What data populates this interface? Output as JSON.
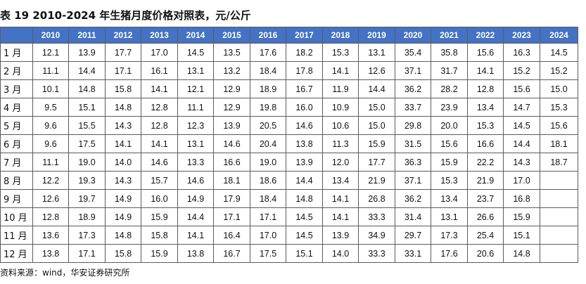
{
  "title": "表 19 2010-2024 年生猪月度价格对照表，元/公斤",
  "table": {
    "years": [
      "2010",
      "2011",
      "2012",
      "2013",
      "2014",
      "2015",
      "2016",
      "2017",
      "2018",
      "2019",
      "2020",
      "2021",
      "2022",
      "2023",
      "2024"
    ],
    "rows": [
      {
        "month": "1 月",
        "values": [
          "12.1",
          "13.9",
          "17.7",
          "17.0",
          "14.5",
          "13.5",
          "17.6",
          "18.2",
          "15.3",
          "13.1",
          "35.4",
          "35.8",
          "15.6",
          "16.3",
          "14.5"
        ]
      },
      {
        "month": "2 月",
        "values": [
          "11.1",
          "14.4",
          "17.1",
          "16.1",
          "13.1",
          "13.2",
          "18.4",
          "17.8",
          "14.1",
          "12.6",
          "37.1",
          "31.7",
          "14.1",
          "15.2",
          "15.2"
        ]
      },
      {
        "month": "3 月",
        "values": [
          "10.1",
          "14.8",
          "15.8",
          "14.1",
          "12.1",
          "12.9",
          "18.9",
          "16.7",
          "11.9",
          "14.4",
          "36.2",
          "28.2",
          "12.8",
          "15.6",
          "15.0"
        ]
      },
      {
        "month": "4 月",
        "values": [
          "9.5",
          "15.1",
          "14.8",
          "12.8",
          "11.1",
          "12.9",
          "19.8",
          "16.0",
          "10.9",
          "15.0",
          "33.7",
          "23.9",
          "13.4",
          "14.7",
          "15.3"
        ]
      },
      {
        "month": "5 月",
        "values": [
          "9.6",
          "15.5",
          "14.3",
          "12.8",
          "12.3",
          "13.9",
          "20.5",
          "14.6",
          "10.6",
          "15.0",
          "29.8",
          "20.0",
          "15.3",
          "14.5",
          "15.6"
        ]
      },
      {
        "month": "6 月",
        "values": [
          "9.6",
          "17.5",
          "14.1",
          "14.1",
          "13.1",
          "14.6",
          "20.4",
          "13.8",
          "11.3",
          "15.9",
          "31.5",
          "15.6",
          "16.6",
          "14.4",
          "18.1"
        ]
      },
      {
        "month": "7 月",
        "values": [
          "11.1",
          "19.0",
          "14.0",
          "14.6",
          "13.3",
          "16.6",
          "19.0",
          "13.9",
          "12.0",
          "17.7",
          "36.3",
          "15.9",
          "22.2",
          "14.3",
          "18.7"
        ]
      },
      {
        "month": "8 月",
        "values": [
          "12.2",
          "19.3",
          "14.3",
          "15.7",
          "14.6",
          "18.1",
          "18.6",
          "14.4",
          "13.4",
          "21.9",
          "37.1",
          "15.3",
          "21.9",
          "17.0",
          ""
        ]
      },
      {
        "month": "9 月",
        "values": [
          "12.6",
          "19.7",
          "14.9",
          "16.0",
          "14.9",
          "17.9",
          "18.4",
          "14.8",
          "14.1",
          "26.8",
          "36.2",
          "13.4",
          "23.7",
          "16.8",
          ""
        ]
      },
      {
        "month": "10 月",
        "values": [
          "12.8",
          "18.9",
          "14.9",
          "15.9",
          "14.4",
          "17.1",
          "17.1",
          "14.5",
          "14.1",
          "33.3",
          "31.4",
          "13.1",
          "26.6",
          "15.9",
          ""
        ]
      },
      {
        "month": "11 月",
        "values": [
          "13.6",
          "17.3",
          "14.8",
          "15.8",
          "14.1",
          "16.4",
          "17.0",
          "14.5",
          "13.9",
          "34.9",
          "29.7",
          "17.3",
          "25.4",
          "15.1",
          ""
        ]
      },
      {
        "month": "12 月",
        "values": [
          "13.8",
          "17.1",
          "15.8",
          "15.9",
          "13.8",
          "16.7",
          "17.5",
          "15.1",
          "14.0",
          "33.3",
          "33.1",
          "17.6",
          "20.6",
          "14.8",
          ""
        ]
      }
    ]
  },
  "source": "资料来源：wind，华安证券研究所",
  "colors": {
    "header_bg": "#4472c4",
    "header_text": "#ffffff",
    "border": "#5c5c5c"
  }
}
